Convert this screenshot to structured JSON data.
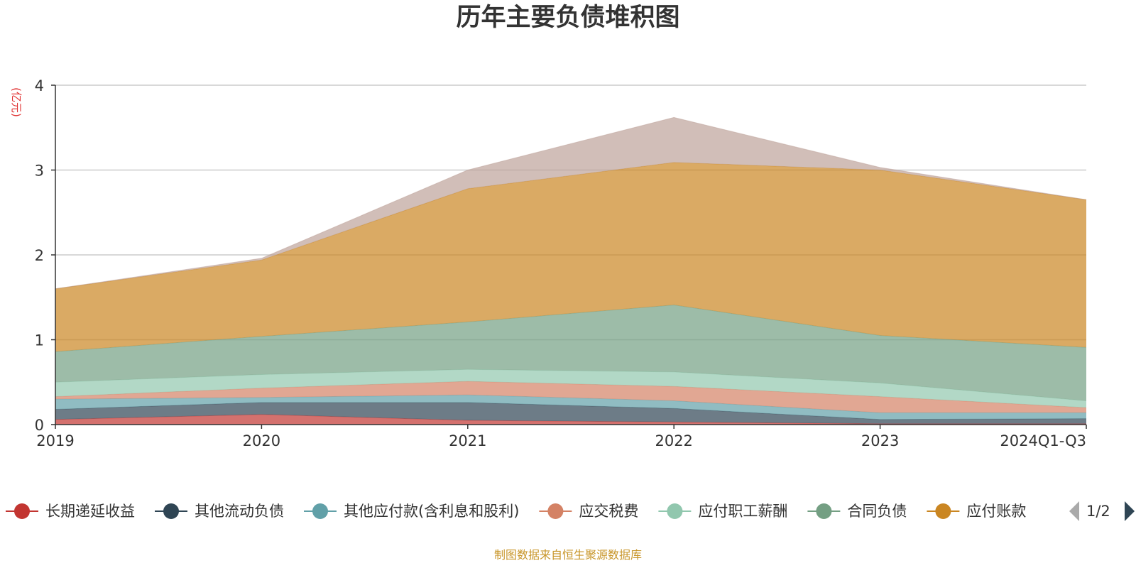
{
  "chart_data": {
    "type": "area",
    "stacked": true,
    "title": "历年主要负债堆积图",
    "unit_label": "(亿元)",
    "categories": [
      "2019",
      "2020",
      "2021",
      "2022",
      "2023",
      "2024Q1-Q3"
    ],
    "ylim": [
      0,
      4
    ],
    "yticks": [
      "0",
      "1",
      "2",
      "3",
      "4"
    ],
    "grid": true,
    "legend_position": "bottom",
    "series": [
      {
        "name": "长期递延收益",
        "color": "#c23531",
        "values": [
          0.06,
          0.12,
          0.05,
          0.03,
          0.01,
          0.01
        ]
      },
      {
        "name": "其他流动负债",
        "color": "#2f4554",
        "values": [
          0.12,
          0.14,
          0.21,
          0.16,
          0.05,
          0.06
        ]
      },
      {
        "name": "其他应付款(含利息和股利)",
        "color": "#61a0a8",
        "values": [
          0.12,
          0.06,
          0.09,
          0.09,
          0.08,
          0.07
        ]
      },
      {
        "name": "应交税费",
        "color": "#d48265",
        "values": [
          0.03,
          0.11,
          0.16,
          0.17,
          0.19,
          0.06
        ]
      },
      {
        "name": "应付职工薪酬",
        "color": "#91c7ae",
        "values": [
          0.17,
          0.16,
          0.14,
          0.17,
          0.16,
          0.08
        ]
      },
      {
        "name": "合同负债",
        "color": "#749f83",
        "values": [
          0.36,
          0.45,
          0.56,
          0.79,
          0.56,
          0.63
        ]
      },
      {
        "name": "应付账款",
        "color": "#ca8622",
        "values": [
          0.74,
          0.9,
          1.57,
          1.68,
          1.95,
          1.74
        ]
      },
      {
        "name": "",
        "color": "#bda29a",
        "values": [
          0.0,
          0.02,
          0.22,
          0.53,
          0.03,
          0.0
        ]
      }
    ]
  },
  "legend": {
    "items": [
      {
        "label": "长期递延收益",
        "color": "#c23531"
      },
      {
        "label": "其他流动负债",
        "color": "#2f4554"
      },
      {
        "label": "其他应付款(含利息和股利)",
        "color": "#61a0a8"
      },
      {
        "label": "应交税费",
        "color": "#d48265"
      },
      {
        "label": "应付职工薪酬",
        "color": "#91c7ae"
      },
      {
        "label": "合同负债",
        "color": "#749f83"
      },
      {
        "label": "应付账款",
        "color": "#ca8622"
      }
    ],
    "page_indicator": "1/2"
  },
  "source_note": "制图数据来自恒生聚源数据库"
}
